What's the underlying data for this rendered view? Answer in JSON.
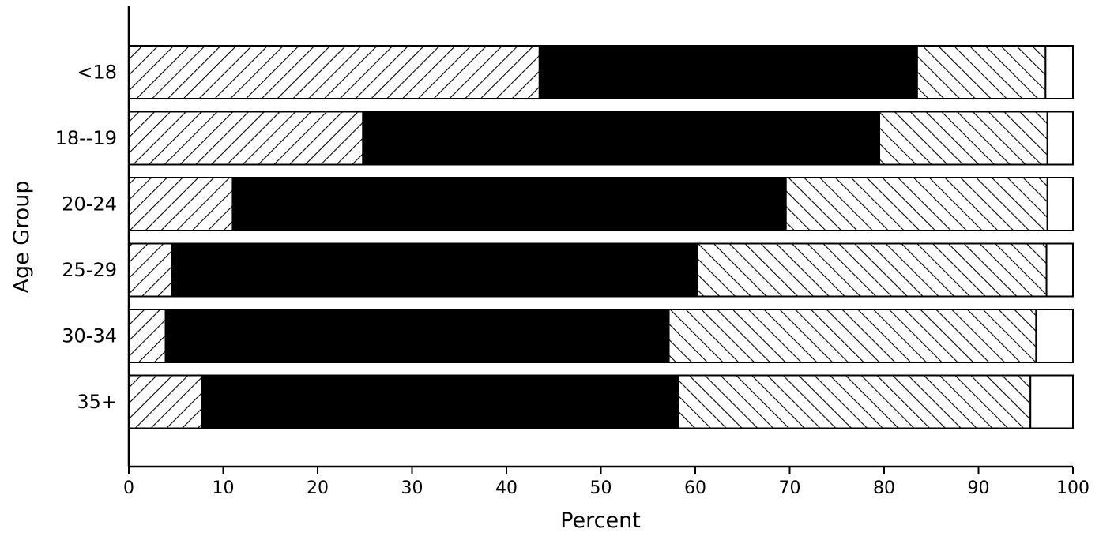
{
  "chart_data": {
    "type": "bar",
    "orientation": "horizontal",
    "stacked": true,
    "title": "",
    "xlabel": "Percent",
    "ylabel": "Age Group",
    "xlim": [
      0,
      100
    ],
    "x_ticks": [
      "0",
      "10",
      "20",
      "30",
      "40",
      "50",
      "60",
      "70",
      "80",
      "90",
      "100"
    ],
    "categories": [
      "<18",
      "18--19",
      "20-24",
      "25-29",
      "30-34",
      "35+"
    ],
    "series": [
      {
        "fill": "hatch-forward",
        "color": "#000000",
        "values": [
          43.5,
          24.8,
          11.0,
          4.6,
          3.9,
          7.7
        ]
      },
      {
        "fill": "solid",
        "color": "#000000",
        "values": [
          40.0,
          54.7,
          58.6,
          55.6,
          53.3,
          50.5
        ]
      },
      {
        "fill": "hatch-back",
        "color": "#000000",
        "values": [
          13.6,
          17.8,
          27.7,
          37.0,
          38.9,
          37.3
        ]
      },
      {
        "fill": "empty",
        "color": "#ffffff",
        "values": [
          2.9,
          2.7,
          2.7,
          2.8,
          3.9,
          4.5
        ]
      }
    ],
    "legend": "none",
    "grid": false
  }
}
